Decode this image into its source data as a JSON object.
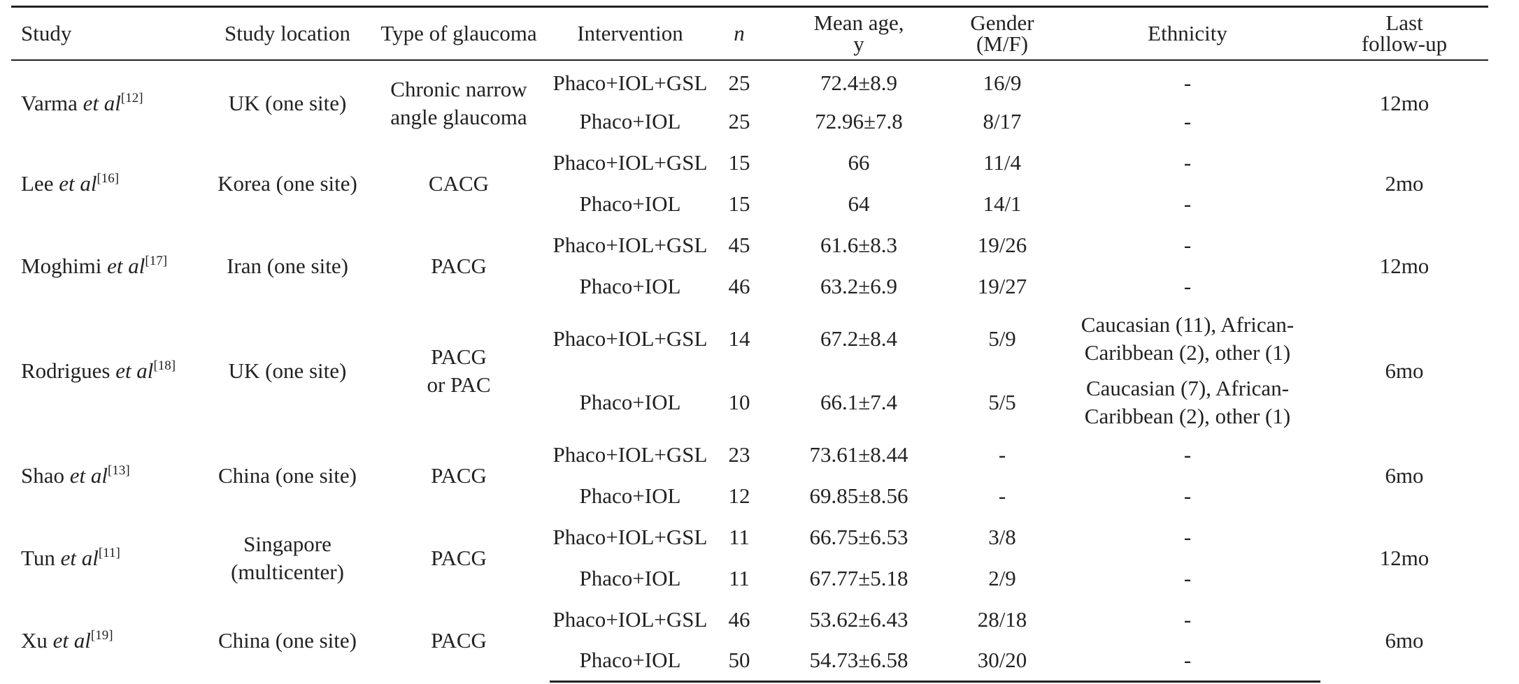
{
  "table": {
    "headers": {
      "study": "Study",
      "location": "Study location",
      "type": "Type of glaucoma",
      "intervention": "Intervention",
      "n": "n",
      "age": "Mean age,\ny",
      "gender": "Gender\n(M/F)",
      "ethnicity": "Ethnicity",
      "followup": "Last\nfollow-up"
    },
    "studies": [
      {
        "author": "Varma ",
        "etal": "et al",
        "ref": "[12]",
        "location": "UK (one site)",
        "type": "Chronic narrow\nangle glaucoma",
        "followup": "12mo",
        "arms": [
          {
            "intervention": "Phaco+IOL+GSL",
            "n": "25",
            "age": "72.4±8.9",
            "gender": "16/9",
            "ethnicity": "-"
          },
          {
            "intervention": "Phaco+IOL",
            "n": "25",
            "age": "72.96±7.8",
            "gender": "8/17",
            "ethnicity": "-"
          }
        ]
      },
      {
        "author": "Lee ",
        "etal": "et al",
        "ref": "[16]",
        "location": "Korea (one site)",
        "type": "CACG",
        "followup": "2mo",
        "arms": [
          {
            "intervention": "Phaco+IOL+GSL",
            "n": "15",
            "age": "66",
            "gender": "11/4",
            "ethnicity": "-"
          },
          {
            "intervention": "Phaco+IOL",
            "n": "15",
            "age": "64",
            "gender": "14/1",
            "ethnicity": "-"
          }
        ]
      },
      {
        "author": "Moghimi ",
        "etal": "et al",
        "ref": "[17]",
        "location": "Iran (one site)",
        "type": "PACG",
        "followup": "12mo",
        "arms": [
          {
            "intervention": "Phaco+IOL+GSL",
            "n": "45",
            "age": "61.6±8.3",
            "gender": "19/26",
            "ethnicity": "-"
          },
          {
            "intervention": "Phaco+IOL",
            "n": "46",
            "age": "63.2±6.9",
            "gender": "19/27",
            "ethnicity": "-"
          }
        ]
      },
      {
        "author": "Rodrigues ",
        "etal": "et al",
        "ref": "[18]",
        "location": "UK (one site)",
        "type": "PACG\nor PAC",
        "followup": "6mo",
        "arms": [
          {
            "intervention": "Phaco+IOL+GSL",
            "n": "14",
            "age": "67.2±8.4",
            "gender": "5/9",
            "ethnicity": "Caucasian (11), African-\nCaribbean (2), other (1)"
          },
          {
            "intervention": "Phaco+IOL",
            "n": "10",
            "age": "66.1±7.4",
            "gender": "5/5",
            "ethnicity": "Caucasian (7), African-\nCaribbean (2), other (1)"
          }
        ]
      },
      {
        "author": "Shao ",
        "etal": "et al",
        "ref": "[13]",
        "location": "China (one site)",
        "type": "PACG",
        "followup": "6mo",
        "arms": [
          {
            "intervention": "Phaco+IOL+GSL",
            "n": "23",
            "age": "73.61±8.44",
            "gender": "-",
            "ethnicity": "-"
          },
          {
            "intervention": "Phaco+IOL",
            "n": "12",
            "age": "69.85±8.56",
            "gender": "-",
            "ethnicity": "-"
          }
        ]
      },
      {
        "author": "Tun ",
        "etal": "et al",
        "ref": "[11]",
        "location": "Singapore\n(multicenter)",
        "type": "PACG",
        "followup": "12mo",
        "arms": [
          {
            "intervention": "Phaco+IOL+GSL",
            "n": "11",
            "age": "66.75±6.53",
            "gender": "3/8",
            "ethnicity": "-"
          },
          {
            "intervention": "Phaco+IOL",
            "n": "11",
            "age": "67.77±5.18",
            "gender": "2/9",
            "ethnicity": "-"
          }
        ]
      },
      {
        "author": "Xu ",
        "etal": "et al",
        "ref": "[19]",
        "location": "China (one site)",
        "type": "PACG",
        "followup": "6mo",
        "arms": [
          {
            "intervention": "Phaco+IOL+GSL",
            "n": "46",
            "age": "53.62±6.43",
            "gender": "28/18",
            "ethnicity": "-"
          },
          {
            "intervention": "Phaco+IOL",
            "n": "50",
            "age": "54.73±6.58",
            "gender": "30/20",
            "ethnicity": "-"
          }
        ]
      }
    ]
  }
}
